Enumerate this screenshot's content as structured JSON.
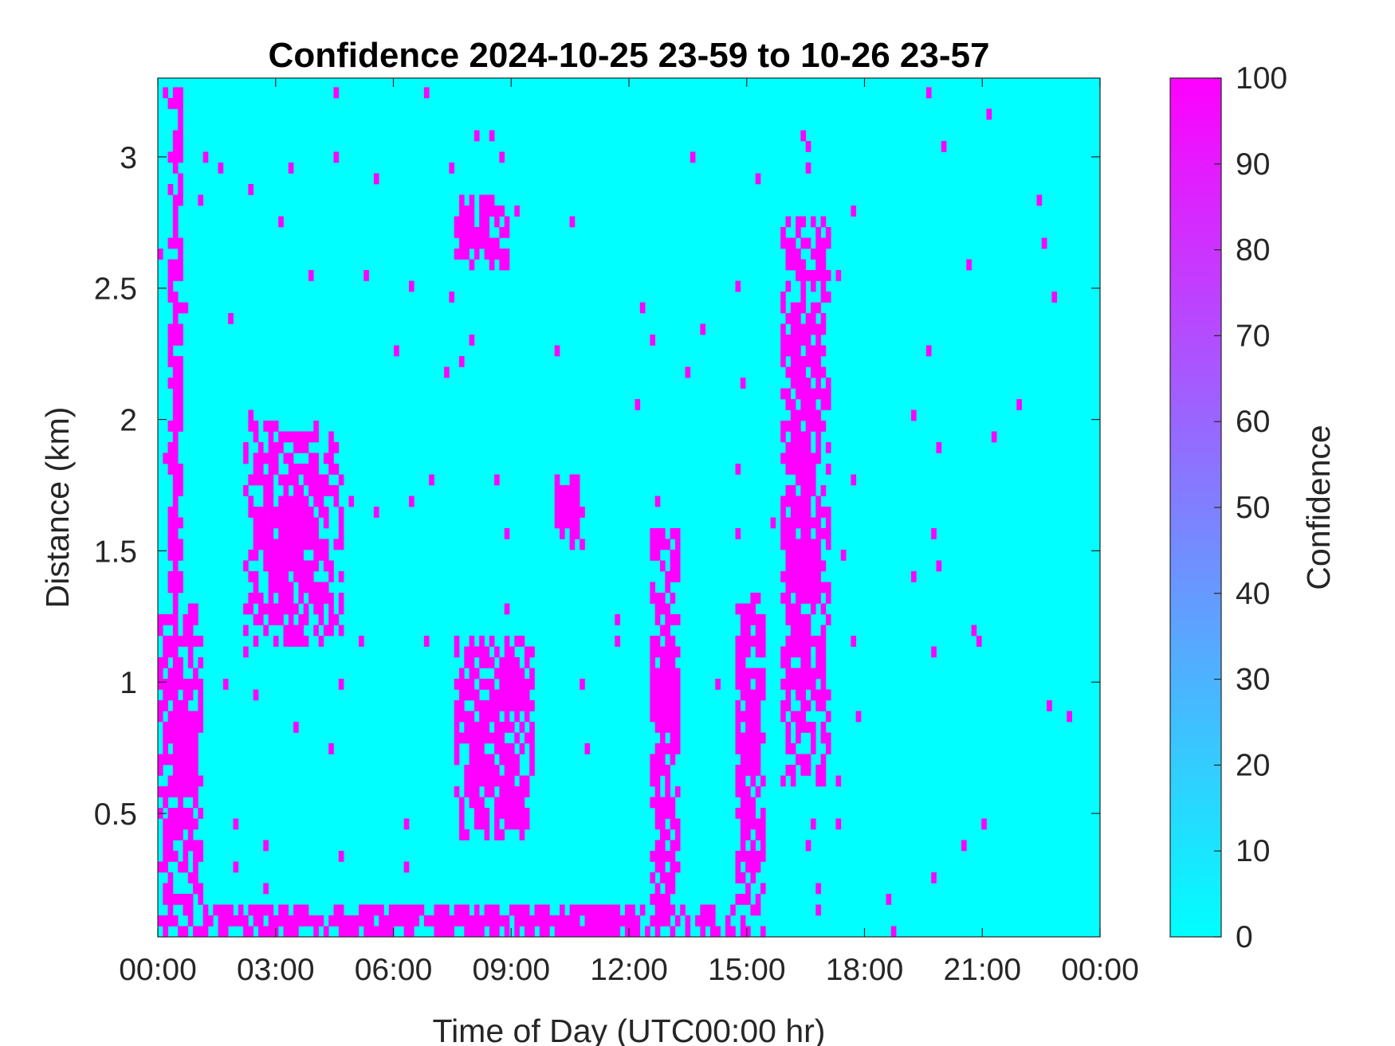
{
  "chart_data": {
    "type": "heatmap",
    "title": "Confidence 2024-10-25 23-59 to 10-26 23-57",
    "xlabel": "Time of Day (UTC00:00 hr)",
    "ylabel": "Distance (km)",
    "xlim": [
      0,
      24
    ],
    "ylim": [
      0.03,
      3.3
    ],
    "x_ticks": [
      0,
      3,
      6,
      9,
      12,
      15,
      18,
      21,
      24
    ],
    "x_tick_labels": [
      "00:00",
      "03:00",
      "06:00",
      "09:00",
      "12:00",
      "15:00",
      "18:00",
      "21:00",
      "00:00"
    ],
    "y_ticks": [
      0.5,
      1,
      1.5,
      2,
      2.5,
      3
    ],
    "y_tick_labels": [
      "0.5",
      "1",
      "1.5",
      "2",
      "2.5",
      "3"
    ],
    "colorbar": {
      "label": "Confidence",
      "range": [
        0,
        100
      ],
      "ticks": [
        0,
        10,
        20,
        30,
        40,
        50,
        60,
        70,
        80,
        90,
        100
      ],
      "tick_labels": [
        "0",
        "10",
        "20",
        "30",
        "40",
        "50",
        "60",
        "70",
        "80",
        "90",
        "100"
      ],
      "color_min": "#00ffff",
      "color_max": "#ff00ff"
    },
    "background_value": 0,
    "high_value": 100,
    "high_regions": [
      {
        "name": "near-range band",
        "t_start": 0,
        "t_end": 15.5,
        "dist_start": 0.03,
        "dist_end": 0.15
      },
      {
        "name": "vertical streak",
        "t_start": 0.3,
        "t_end": 0.6,
        "dist_start": 0.03,
        "dist_end": 3.3
      },
      {
        "name": "low layer 00-01h",
        "t_start": 0,
        "t_end": 1.1,
        "dist_start": 0.03,
        "dist_end": 1.3
      },
      {
        "name": "cluster 02-05h",
        "t_start": 2.2,
        "t_end": 4.7,
        "dist_start": 1.15,
        "dist_end": 2.0
      },
      {
        "name": "upper cluster 07.5-09h",
        "t_start": 7.6,
        "t_end": 9.0,
        "dist_start": 2.6,
        "dist_end": 2.9
      },
      {
        "name": "cluster 10-11h",
        "t_start": 10.1,
        "t_end": 10.9,
        "dist_start": 1.5,
        "dist_end": 1.8
      },
      {
        "name": "lower cluster 07.5-09.5h",
        "t_start": 7.6,
        "t_end": 9.6,
        "dist_start": 0.4,
        "dist_end": 1.2
      },
      {
        "name": "streak 12.5-13.5h",
        "t_start": 12.6,
        "t_end": 13.4,
        "dist_start": 0.15,
        "dist_end": 1.6
      },
      {
        "name": "streak 15h",
        "t_start": 14.8,
        "t_end": 15.5,
        "dist_start": 0.1,
        "dist_end": 1.35
      },
      {
        "name": "column 16-17h",
        "t_start": 15.9,
        "t_end": 17.2,
        "dist_start": 0.6,
        "dist_end": 2.8
      }
    ]
  }
}
